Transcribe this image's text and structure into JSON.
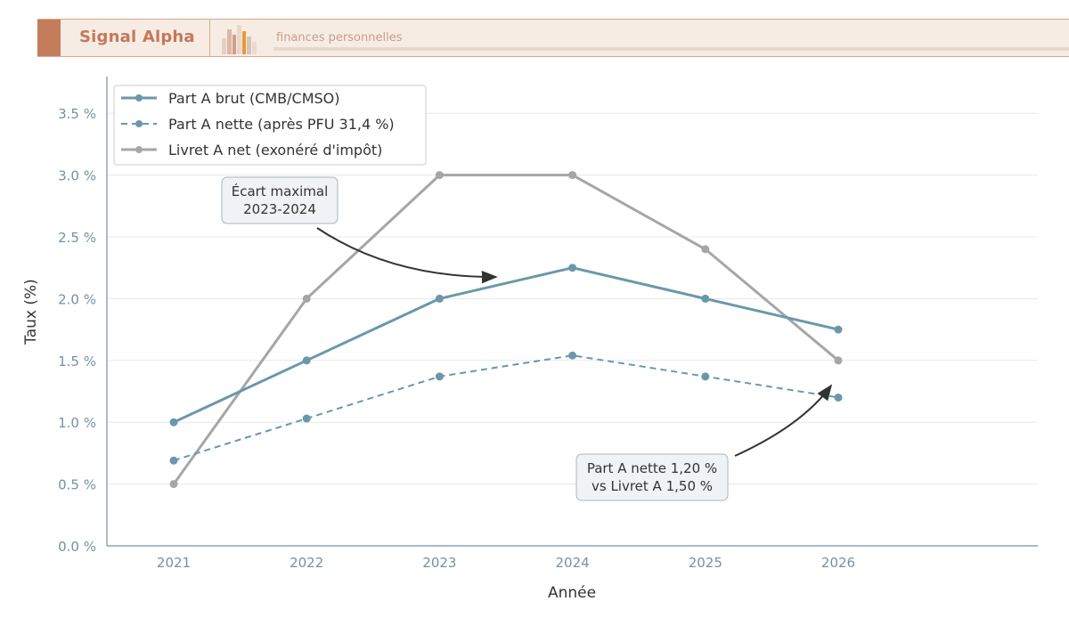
{
  "header": {
    "brand": "Signal Alpha",
    "tagline": "finances personnelles"
  },
  "colors": {
    "brand": "#c5785a",
    "part_a": "#6a98aa",
    "livret": "#a6a6a6",
    "axis": "#7592a0"
  },
  "chart_data": {
    "type": "line",
    "x": [
      2021,
      2022,
      2023,
      2024,
      2025,
      2026
    ],
    "xlabel": "Année",
    "ylabel": "Taux (%)",
    "ylim": [
      0,
      3.75
    ],
    "yticks": [
      0.0,
      0.5,
      1.0,
      1.5,
      2.0,
      2.5,
      3.0,
      3.5
    ],
    "ytick_labels": [
      "0.0 %",
      "0.5 %",
      "1.0 %",
      "1.5 %",
      "2.0 %",
      "2.5 %",
      "3.0 %",
      "3.5 %"
    ],
    "grid": "horizontal",
    "legend_position": "top-left",
    "series": [
      {
        "name": "Part A brut (CMB/CMSO)",
        "values": [
          1.0,
          1.5,
          2.0,
          2.25,
          2.0,
          1.75
        ],
        "style": "solid",
        "color": "#6a98aa"
      },
      {
        "name": "Part A nette (après PFU 31,4 %)",
        "values": [
          0.69,
          1.03,
          1.37,
          1.54,
          1.37,
          1.2
        ],
        "style": "dashed",
        "color": "#6a98aa"
      },
      {
        "name": "Livret A net (exonéré d'impôt)",
        "values": [
          0.5,
          2.0,
          3.0,
          3.0,
          2.4,
          1.5
        ],
        "style": "solid",
        "color": "#a6a6a6"
      }
    ],
    "annotations": [
      {
        "lines": [
          "Écart maximal",
          "2023-2024"
        ]
      },
      {
        "lines": [
          "Part A nette 1,20 %",
          "vs Livret A 1,50 %"
        ]
      }
    ]
  }
}
